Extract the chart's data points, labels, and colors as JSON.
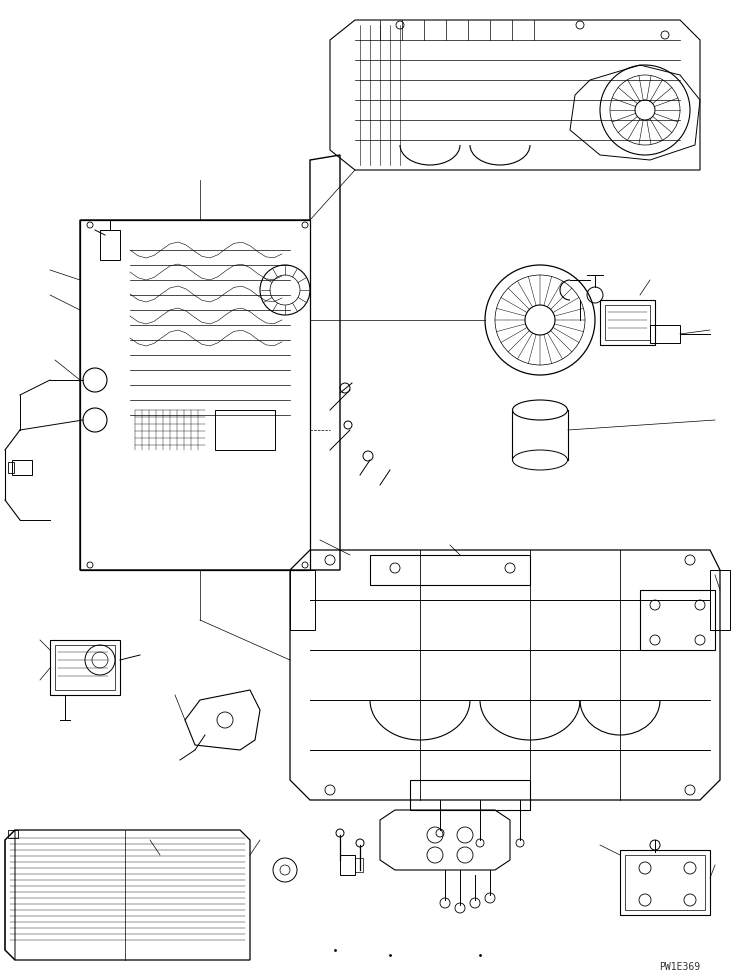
{
  "bg_color": "#ffffff",
  "line_color": "#000000",
  "watermark": "PW1E369",
  "fig_width": 7.35,
  "fig_height": 9.8,
  "dpi": 100
}
